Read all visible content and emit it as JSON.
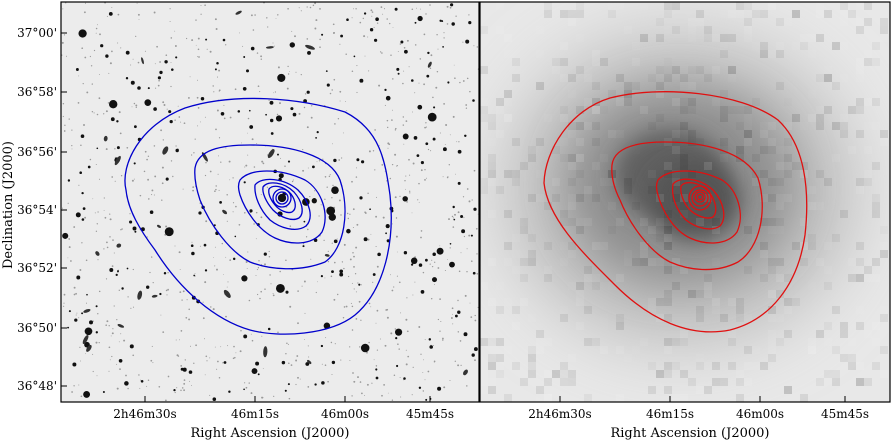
{
  "figure": {
    "y_axis_label": "Declination (J2000)",
    "y_ticks": [
      "37°00'",
      "36°58'",
      "36°56'",
      "36°54'",
      "36°52'",
      "36°50'",
      "36°48'"
    ],
    "panels": [
      {
        "id": "optical",
        "x_axis_label": "Right Ascension (J2000)",
        "x_ticks": [
          "2h46m30s",
          "46m15s",
          "46m00s",
          "45m45s"
        ],
        "image_style": "optical star field (inverted grayscale)",
        "contour_color": "#0000cc"
      },
      {
        "id": "xray",
        "x_axis_label": "Right Ascension (J2000)",
        "x_ticks": [
          "2h46m30s",
          "46m15s",
          "46m00s",
          "45m45s"
        ],
        "image_style": "smoothed diffuse emission (inverted grayscale)",
        "contour_color": "#e01010"
      }
    ]
  }
}
